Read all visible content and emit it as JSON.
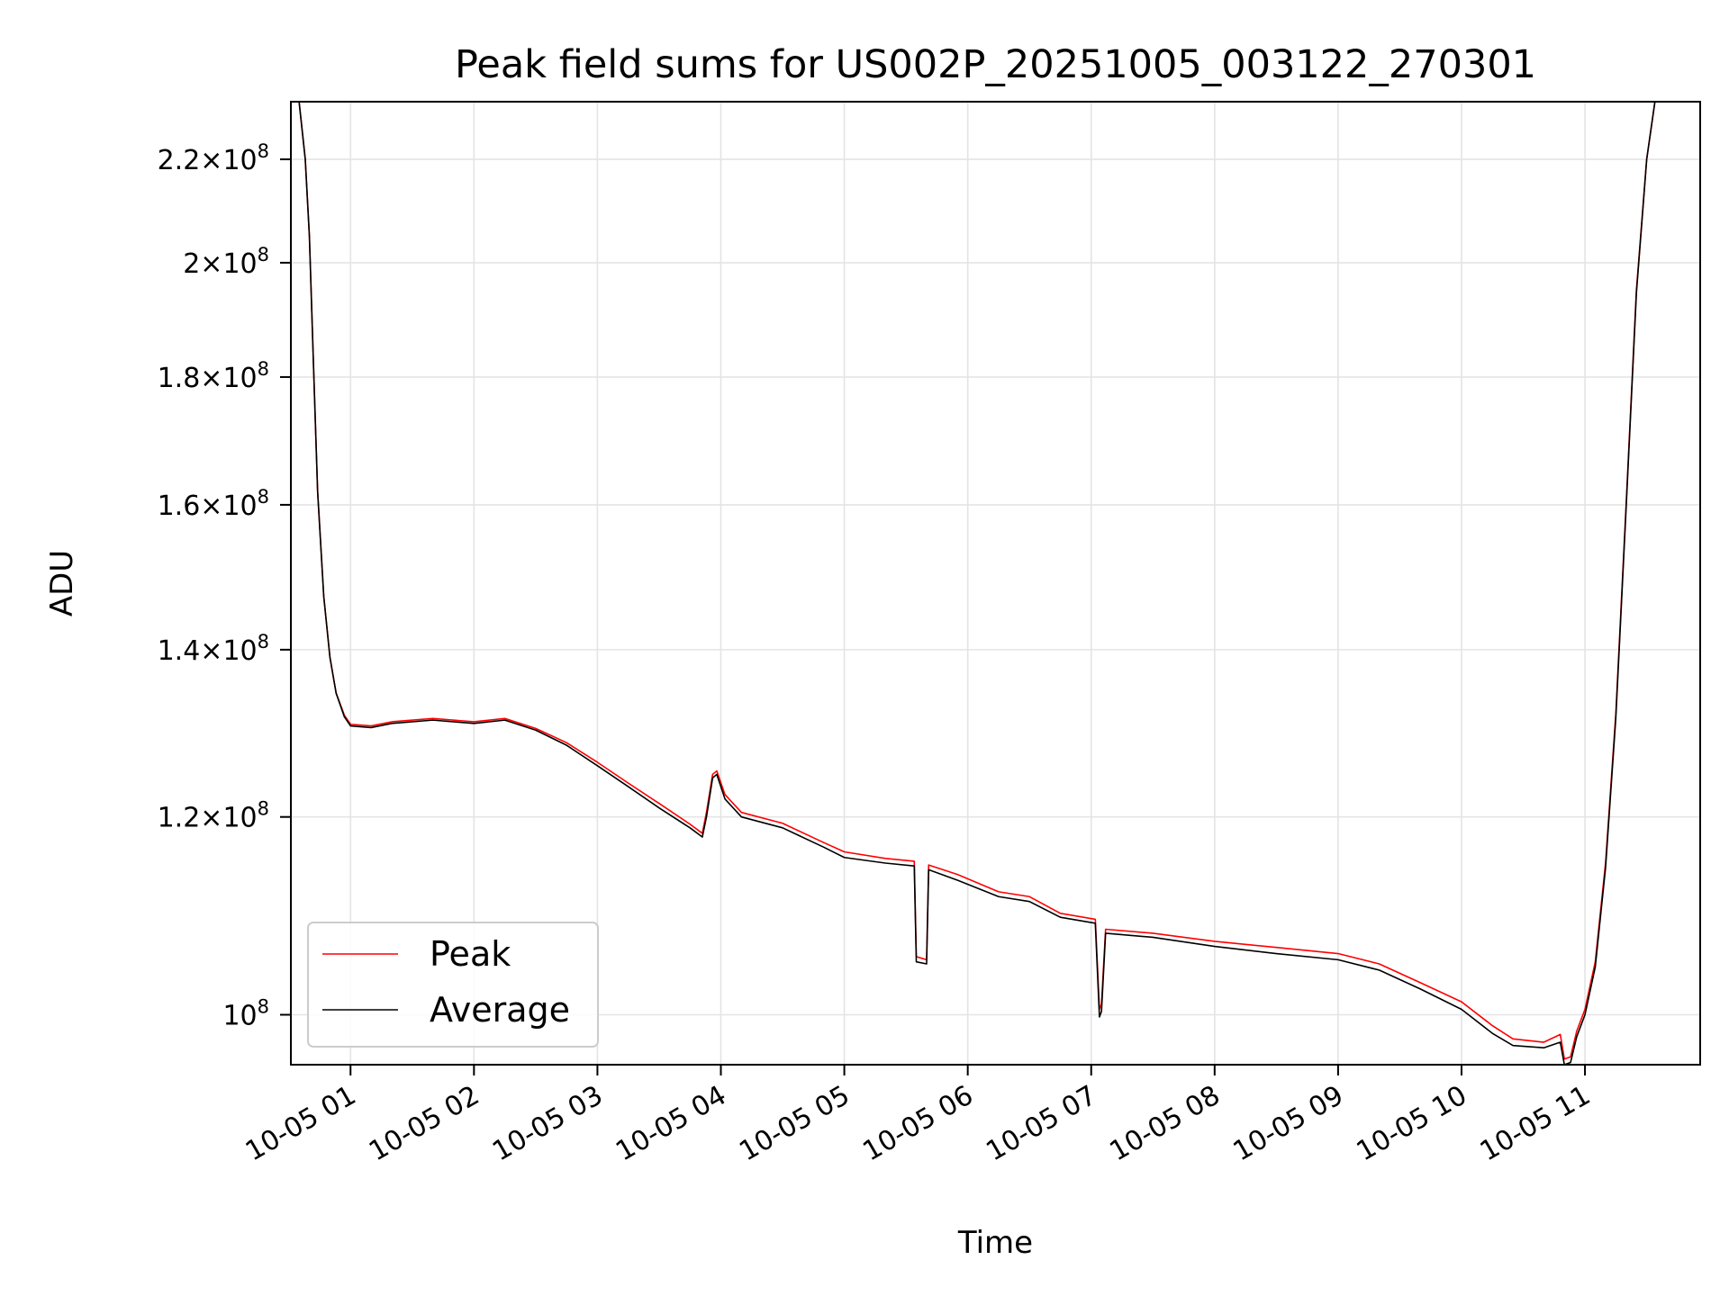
{
  "chart_data": {
    "type": "line",
    "title": "Peak field sums for US002P_20251005_003122_270301",
    "xlabel": "Time",
    "ylabel": "ADU",
    "y_scale": "log",
    "grid": true,
    "legend_placement": "lower-left",
    "xlim": [
      "2025-10-05T00:31",
      "2025-10-05T11:56"
    ],
    "ylim": [
      95500000.0,
      232000000.0
    ],
    "x_ticks": [
      {
        "t": "2025-10-05T01:00",
        "label": "10-05 01"
      },
      {
        "t": "2025-10-05T02:00",
        "label": "10-05 02"
      },
      {
        "t": "2025-10-05T03:00",
        "label": "10-05 03"
      },
      {
        "t": "2025-10-05T04:00",
        "label": "10-05 04"
      },
      {
        "t": "2025-10-05T05:00",
        "label": "10-05 05"
      },
      {
        "t": "2025-10-05T06:00",
        "label": "10-05 06"
      },
      {
        "t": "2025-10-05T07:00",
        "label": "10-05 07"
      },
      {
        "t": "2025-10-05T08:00",
        "label": "10-05 08"
      },
      {
        "t": "2025-10-05T09:00",
        "label": "10-05 09"
      },
      {
        "t": "2025-10-05T10:00",
        "label": "10-05 10"
      },
      {
        "t": "2025-10-05T11:00",
        "label": "10-05 11"
      }
    ],
    "y_ticks": [
      {
        "value": 220000000,
        "mantissa": "2.2",
        "exp": "8"
      },
      {
        "value": 200000000,
        "mantissa": "2",
        "exp": "8"
      },
      {
        "value": 180000000,
        "mantissa": "1.8",
        "exp": "8"
      },
      {
        "value": 160000000,
        "mantissa": "1.6",
        "exp": "8"
      },
      {
        "value": 140000000,
        "mantissa": "1.4",
        "exp": "8"
      },
      {
        "value": 120000000,
        "mantissa": "1.2",
        "exp": "8"
      },
      {
        "value": 100000000,
        "mantissa": "",
        "exp": "8"
      }
    ],
    "series": [
      {
        "name": "Peak",
        "color": "#ff0000",
        "points": [
          [
            "2025-10-05T00:31",
            232000000.0
          ],
          [
            "2025-10-05T00:35",
            232000000.0
          ],
          [
            "2025-10-05T00:38",
            220000000.0
          ],
          [
            "2025-10-05T00:40",
            205000000.0
          ],
          [
            "2025-10-05T00:42",
            182000000.0
          ],
          [
            "2025-10-05T00:44",
            162000000.0
          ],
          [
            "2025-10-05T00:47",
            147000000.0
          ],
          [
            "2025-10-05T00:50",
            139000000.0
          ],
          [
            "2025-10-05T00:53",
            134500000.0
          ],
          [
            "2025-10-05T00:57",
            131800000.0
          ],
          [
            "2025-10-05T01:00",
            130700000.0
          ],
          [
            "2025-10-05T01:10",
            130500000.0
          ],
          [
            "2025-10-05T01:20",
            131000000.0
          ],
          [
            "2025-10-05T01:40",
            131400000.0
          ],
          [
            "2025-10-05T02:00",
            131000000.0
          ],
          [
            "2025-10-05T02:15",
            131400000.0
          ],
          [
            "2025-10-05T02:30",
            130200000.0
          ],
          [
            "2025-10-05T02:45",
            128500000.0
          ],
          [
            "2025-10-05T03:00",
            126200000.0
          ],
          [
            "2025-10-05T03:15",
            123800000.0
          ],
          [
            "2025-10-05T03:30",
            121500000.0
          ],
          [
            "2025-10-05T03:45",
            119200000.0
          ],
          [
            "2025-10-05T03:51",
            118200000.0
          ],
          [
            "2025-10-05T03:53",
            120500000.0
          ],
          [
            "2025-10-05T03:56",
            124800000.0
          ],
          [
            "2025-10-05T03:58",
            125200000.0
          ],
          [
            "2025-10-05T04:02",
            122500000.0
          ],
          [
            "2025-10-05T04:10",
            120500000.0
          ],
          [
            "2025-10-05T04:30",
            119300000.0
          ],
          [
            "2025-10-05T04:50",
            117200000.0
          ],
          [
            "2025-10-05T05:00",
            116200000.0
          ],
          [
            "2025-10-05T05:20",
            115500000.0
          ],
          [
            "2025-10-05T05:34",
            115200000.0
          ],
          [
            "2025-10-05T05:35",
            105500000.0
          ],
          [
            "2025-10-05T05:40",
            105200000.0
          ],
          [
            "2025-10-05T05:41",
            114800000.0
          ],
          [
            "2025-10-05T05:55",
            113800000.0
          ],
          [
            "2025-10-05T06:15",
            112000000.0
          ],
          [
            "2025-10-05T06:30",
            111500000.0
          ],
          [
            "2025-10-05T06:45",
            109800000.0
          ],
          [
            "2025-10-05T07:02",
            109200000.0
          ],
          [
            "2025-10-05T07:04",
            100500000.0
          ],
          [
            "2025-10-05T07:05",
            101000000.0
          ],
          [
            "2025-10-05T07:07",
            108200000.0
          ],
          [
            "2025-10-05T07:30",
            107800000.0
          ],
          [
            "2025-10-05T08:00",
            107000000.0
          ],
          [
            "2025-10-05T08:30",
            106400000.0
          ],
          [
            "2025-10-05T09:00",
            105800000.0
          ],
          [
            "2025-10-05T09:20",
            104800000.0
          ],
          [
            "2025-10-05T09:40",
            103000000.0
          ],
          [
            "2025-10-05T10:00",
            101200000.0
          ],
          [
            "2025-10-05T10:15",
            99000000.0
          ],
          [
            "2025-10-05T10:25",
            97800000.0
          ],
          [
            "2025-10-05T10:40",
            97500000.0
          ],
          [
            "2025-10-05T10:48",
            98200000.0
          ],
          [
            "2025-10-05T10:50",
            96000000.0
          ],
          [
            "2025-10-05T10:53",
            96200000.0
          ],
          [
            "2025-10-05T10:56",
            98500000.0
          ],
          [
            "2025-10-05T11:00",
            100500000.0
          ],
          [
            "2025-10-05T11:05",
            105000000.0
          ],
          [
            "2025-10-05T11:10",
            115000000.0
          ],
          [
            "2025-10-05T11:15",
            132000000.0
          ],
          [
            "2025-10-05T11:20",
            160000000.0
          ],
          [
            "2025-10-05T11:25",
            195000000.0
          ],
          [
            "2025-10-05T11:30",
            220000000.0
          ],
          [
            "2025-10-05T11:34",
            232000000.0
          ],
          [
            "2025-10-05T11:56",
            232000000.0
          ]
        ]
      },
      {
        "name": "Average",
        "color": "#000000",
        "points": [
          [
            "2025-10-05T00:31",
            232000000.0
          ],
          [
            "2025-10-05T00:35",
            232000000.0
          ],
          [
            "2025-10-05T00:38",
            220000000.0
          ],
          [
            "2025-10-05T00:40",
            205000000.0
          ],
          [
            "2025-10-05T00:42",
            182000000.0
          ],
          [
            "2025-10-05T00:44",
            162000000.0
          ],
          [
            "2025-10-05T00:47",
            147000000.0
          ],
          [
            "2025-10-05T00:50",
            139000000.0
          ],
          [
            "2025-10-05T00:53",
            134500000.0
          ],
          [
            "2025-10-05T00:57",
            131600000.0
          ],
          [
            "2025-10-05T01:00",
            130500000.0
          ],
          [
            "2025-10-05T01:10",
            130300000.0
          ],
          [
            "2025-10-05T01:20",
            130800000.0
          ],
          [
            "2025-10-05T01:40",
            131200000.0
          ],
          [
            "2025-10-05T02:00",
            130800000.0
          ],
          [
            "2025-10-05T02:15",
            131200000.0
          ],
          [
            "2025-10-05T02:30",
            130000000.0
          ],
          [
            "2025-10-05T02:45",
            128200000.0
          ],
          [
            "2025-10-05T03:00",
            125800000.0
          ],
          [
            "2025-10-05T03:15",
            123400000.0
          ],
          [
            "2025-10-05T03:30",
            121000000.0
          ],
          [
            "2025-10-05T03:45",
            118800000.0
          ],
          [
            "2025-10-05T03:51",
            117800000.0
          ],
          [
            "2025-10-05T03:53",
            120000000.0
          ],
          [
            "2025-10-05T03:56",
            124400000.0
          ],
          [
            "2025-10-05T03:58",
            124800000.0
          ],
          [
            "2025-10-05T04:02",
            122000000.0
          ],
          [
            "2025-10-05T04:10",
            120000000.0
          ],
          [
            "2025-10-05T04:30",
            118800000.0
          ],
          [
            "2025-10-05T04:50",
            116700000.0
          ],
          [
            "2025-10-05T05:00",
            115600000.0
          ],
          [
            "2025-10-05T05:20",
            115000000.0
          ],
          [
            "2025-10-05T05:34",
            114700000.0
          ],
          [
            "2025-10-05T05:35",
            105000000.0
          ],
          [
            "2025-10-05T05:40",
            104800000.0
          ],
          [
            "2025-10-05T05:41",
            114300000.0
          ],
          [
            "2025-10-05T05:55",
            113200000.0
          ],
          [
            "2025-10-05T06:15",
            111500000.0
          ],
          [
            "2025-10-05T06:30",
            111000000.0
          ],
          [
            "2025-10-05T06:45",
            109400000.0
          ],
          [
            "2025-10-05T07:02",
            108800000.0
          ],
          [
            "2025-10-05T07:04",
            99800000.0
          ],
          [
            "2025-10-05T07:05",
            100300000.0
          ],
          [
            "2025-10-05T07:07",
            107800000.0
          ],
          [
            "2025-10-05T07:30",
            107400000.0
          ],
          [
            "2025-10-05T08:00",
            106500000.0
          ],
          [
            "2025-10-05T08:30",
            105800000.0
          ],
          [
            "2025-10-05T09:00",
            105200000.0
          ],
          [
            "2025-10-05T09:20",
            104200000.0
          ],
          [
            "2025-10-05T09:40",
            102400000.0
          ],
          [
            "2025-10-05T10:00",
            100500000.0
          ],
          [
            "2025-10-05T10:15",
            98300000.0
          ],
          [
            "2025-10-05T10:25",
            97200000.0
          ],
          [
            "2025-10-05T10:40",
            97000000.0
          ],
          [
            "2025-10-05T10:48",
            97500000.0
          ],
          [
            "2025-10-05T10:50",
            95500000.0
          ],
          [
            "2025-10-05T10:53",
            95700000.0
          ],
          [
            "2025-10-05T10:56",
            98000000.0
          ],
          [
            "2025-10-05T11:00",
            100000000.0
          ],
          [
            "2025-10-05T11:05",
            104500000.0
          ],
          [
            "2025-10-05T11:10",
            114500000.0
          ],
          [
            "2025-10-05T11:15",
            131500000.0
          ],
          [
            "2025-10-05T11:20",
            159500000.0
          ],
          [
            "2025-10-05T11:25",
            194500000.0
          ],
          [
            "2025-10-05T11:30",
            220000000.0
          ],
          [
            "2025-10-05T11:34",
            232000000.0
          ],
          [
            "2025-10-05T11:56",
            232000000.0
          ]
        ]
      }
    ]
  }
}
